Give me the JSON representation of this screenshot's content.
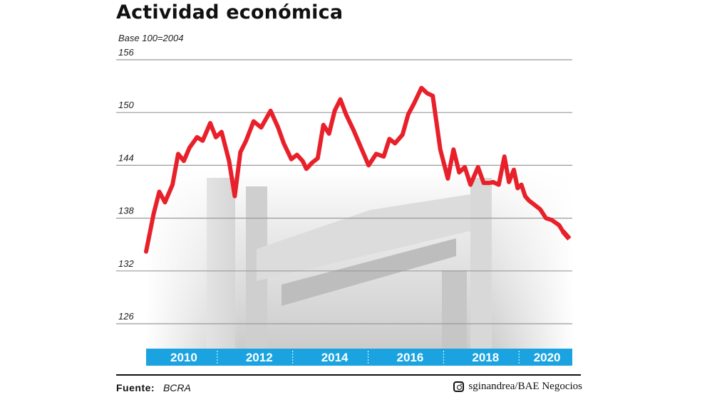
{
  "header": {
    "title": "Actividad económica",
    "subtitle": "Base 100=2004"
  },
  "footer": {
    "label": "Fuente:",
    "source": "BCRA",
    "credit": "sginandrea/BAE Negocios",
    "credit_icon": "instagram-icon"
  },
  "colors": {
    "line": "#e8202a",
    "axis_band": "#1aa3e0",
    "grid": "#9a9a9a"
  },
  "chart_data": {
    "type": "line",
    "title": "Actividad económica",
    "subtitle": "Base 100=2004",
    "ylim": [
      126,
      156
    ],
    "yticks": [
      126,
      132,
      138,
      144,
      150,
      156
    ],
    "xlim": [
      2009.0,
      2020.3
    ],
    "xticks": [
      "2010",
      "2012",
      "2014",
      "2016",
      "2018",
      "2020"
    ],
    "grid": true,
    "x_axis_style": "blue band at bottom with white year labels",
    "series": [
      {
        "style": "solid",
        "x": [
          2009.0,
          2009.2,
          2009.35,
          2009.5,
          2009.7,
          2009.85,
          2010.0,
          2010.15,
          2010.35,
          2010.5,
          2010.7,
          2010.85,
          2011.0,
          2011.2,
          2011.35,
          2011.5,
          2011.65,
          2011.85,
          2012.05,
          2012.3,
          2012.5,
          2012.65,
          2012.85,
          2013.0,
          2013.15,
          2013.25,
          2013.4,
          2013.55,
          2013.7,
          2013.85,
          2014.0,
          2014.15,
          2014.3,
          2014.5,
          2014.7,
          2014.9,
          2015.1,
          2015.3,
          2015.45,
          2015.6,
          2015.8,
          2015.95,
          2016.1,
          2016.3,
          2016.45,
          2016.6,
          2016.8,
          2017.0,
          2017.15,
          2017.3,
          2017.45,
          2017.6,
          2017.8,
          2017.95,
          2018.1,
          2018.2,
          2018.35,
          2018.5,
          2018.62,
          2018.75,
          2018.85,
          2018.95,
          2019.05,
          2019.15,
          2019.3,
          2019.45,
          2019.6,
          2019.75,
          2019.85,
          2019.95,
          2020.05,
          2020.15,
          2020.25
        ],
        "y": [
          134.2,
          138.5,
          141.0,
          139.8,
          141.8,
          145.3,
          144.5,
          146.0,
          147.2,
          146.8,
          148.8,
          147.2,
          147.8,
          144.5,
          140.5,
          145.5,
          146.8,
          149.0,
          148.3,
          150.2,
          148.3,
          146.5,
          144.7,
          145.2,
          144.5,
          143.6,
          144.3,
          144.8,
          148.6,
          147.6,
          150.2,
          151.5,
          149.8,
          148.0,
          146.0,
          144.0,
          145.3,
          145.0,
          147.0,
          146.5,
          147.5,
          149.8,
          151.0,
          152.8,
          152.2,
          151.9,
          145.8,
          142.5,
          145.8,
          143.2,
          143.8,
          141.8,
          143.8,
          142.0,
          142.0,
          142.1,
          141.8,
          145.0,
          142.1,
          143.5,
          141.4,
          141.8,
          140.5,
          140.0,
          139.5,
          139.0,
          138.0,
          137.8,
          137.5,
          137.2,
          136.5,
          136.0,
          135.5
        ]
      }
    ]
  }
}
